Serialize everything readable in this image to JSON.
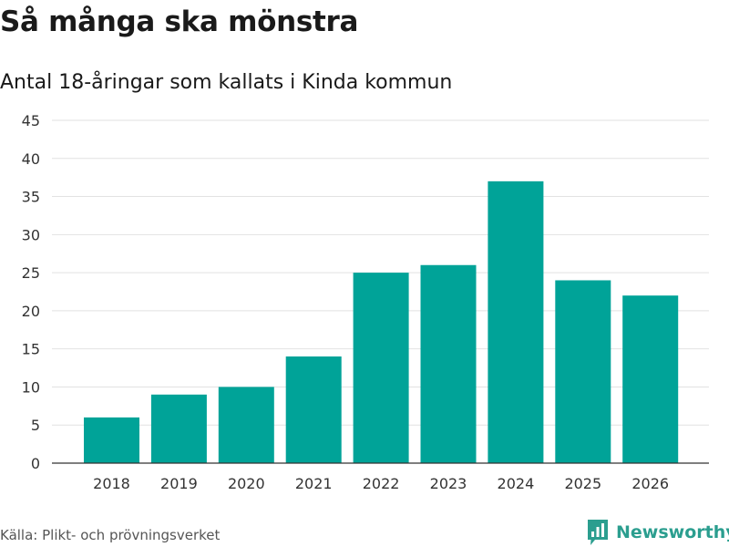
{
  "title": "Så många ska mönstra",
  "subtitle": "Antal 18-åringar som kallats i Kinda kommun",
  "source": "Källa: Plikt- och prövningsverket",
  "brand": {
    "name": "Newsworthy",
    "color": "#2b9e8f"
  },
  "chart_data": {
    "type": "bar",
    "title": "Så många ska mönstra",
    "subtitle": "Antal 18-åringar som kallats i Kinda kommun",
    "xlabel": "",
    "ylabel": "",
    "categories": [
      "2018",
      "2019",
      "2020",
      "2021",
      "2022",
      "2023",
      "2024",
      "2025",
      "2026"
    ],
    "values": [
      6,
      9,
      10,
      14,
      25,
      26,
      37,
      24,
      22
    ],
    "ylim": [
      0,
      45
    ],
    "yticks": [
      "0",
      "5",
      "10",
      "15",
      "20",
      "25",
      "30",
      "35",
      "40",
      "45"
    ],
    "grid": true,
    "bar_color": "#00a398"
  }
}
